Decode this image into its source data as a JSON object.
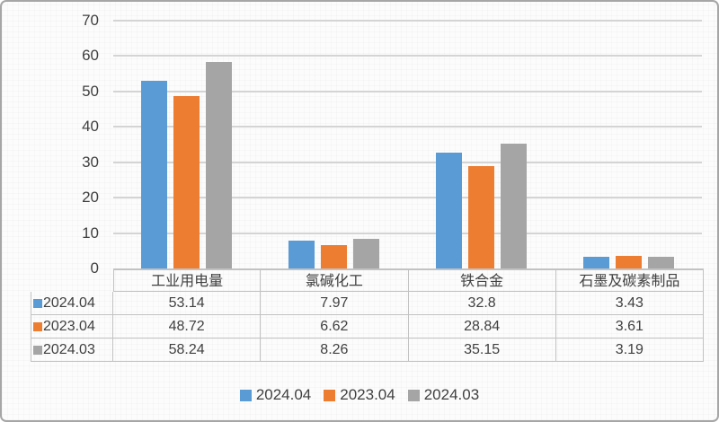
{
  "chart_data": {
    "type": "bar",
    "title": "",
    "xlabel": "",
    "ylabel": "",
    "categories": [
      "工业用电量",
      "氯碱化工",
      "铁合金",
      "石墨及碳素制品"
    ],
    "series": [
      {
        "name": "2024.04",
        "color": "#5B9BD5",
        "values": [
          53.14,
          7.97,
          32.8,
          3.43
        ]
      },
      {
        "name": "2023.04",
        "color": "#ED7D31",
        "values": [
          48.72,
          6.62,
          28.84,
          3.61
        ]
      },
      {
        "name": "2024.03",
        "color": "#A5A5A5",
        "values": [
          58.24,
          8.26,
          35.15,
          3.19
        ]
      }
    ],
    "ylim": [
      0,
      70
    ],
    "yticks": [
      0,
      10,
      20,
      30,
      40,
      50,
      60,
      70
    ],
    "grid": true,
    "legend_position": "bottom",
    "data_table_with_legend_keys": true
  },
  "colors": {
    "background": "#fcfcfc",
    "card_border": "#a6a6a6",
    "gridline": "#d4d4d4",
    "table_border": "#c2c2c2",
    "text": "#404040",
    "axis_text": "#3f3f3f"
  }
}
